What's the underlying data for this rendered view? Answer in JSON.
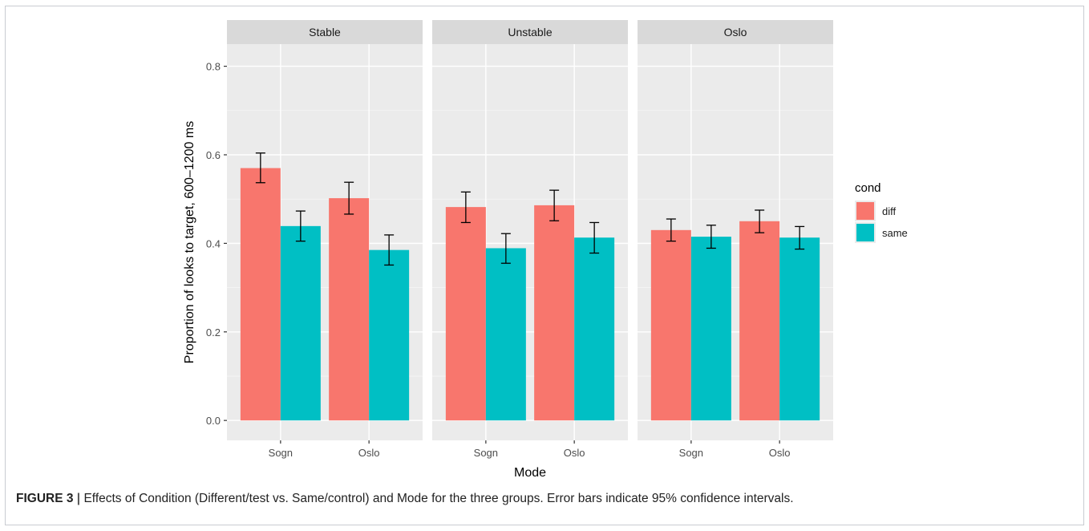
{
  "caption": {
    "label": "FIGURE 3",
    "separator": "|",
    "text": "Effects of Condition (Different/test vs. Same/control) and Mode for the three groups. Error bars indicate 95% confidence intervals."
  },
  "chart_data": {
    "type": "bar",
    "xlabel": "Mode",
    "ylabel": "Proportion of looks to target, 600–1200 ms",
    "ylim": [
      -0.045,
      0.85
    ],
    "yticks": [
      0.0,
      0.2,
      0.4,
      0.6,
      0.8
    ],
    "ytick_labels": [
      "0.0",
      "0.2",
      "0.4",
      "0.6",
      "0.8"
    ],
    "categories": [
      "Sogn",
      "Oslo"
    ],
    "grid": true,
    "legend": {
      "title": "cond",
      "position": "right"
    },
    "colors": {
      "diff": "#f8766d",
      "same": "#00bfc4",
      "panel_bg": "#ebebeb",
      "strip_bg": "#d9d9d9",
      "grid": "#ffffff"
    },
    "panels": [
      {
        "title": "Stable",
        "series": [
          {
            "name": "diff",
            "values": [
              0.57,
              0.502
            ],
            "ci_low": [
              0.537,
              0.466
            ],
            "ci_high": [
              0.604,
              0.538
            ]
          },
          {
            "name": "same",
            "values": [
              0.439,
              0.385
            ],
            "ci_low": [
              0.405,
              0.351
            ],
            "ci_high": [
              0.473,
              0.419
            ]
          }
        ]
      },
      {
        "title": "Unstable",
        "series": [
          {
            "name": "diff",
            "values": [
              0.482,
              0.486
            ],
            "ci_low": [
              0.447,
              0.451
            ],
            "ci_high": [
              0.516,
              0.52
            ]
          },
          {
            "name": "same",
            "values": [
              0.389,
              0.413
            ],
            "ci_low": [
              0.355,
              0.378
            ],
            "ci_high": [
              0.422,
              0.447
            ]
          }
        ]
      },
      {
        "title": "Oslo",
        "series": [
          {
            "name": "diff",
            "values": [
              0.43,
              0.45
            ],
            "ci_low": [
              0.405,
              0.424
            ],
            "ci_high": [
              0.455,
              0.475
            ]
          },
          {
            "name": "same",
            "values": [
              0.415,
              0.413
            ],
            "ci_low": [
              0.389,
              0.387
            ],
            "ci_high": [
              0.441,
              0.438
            ]
          }
        ]
      }
    ]
  }
}
